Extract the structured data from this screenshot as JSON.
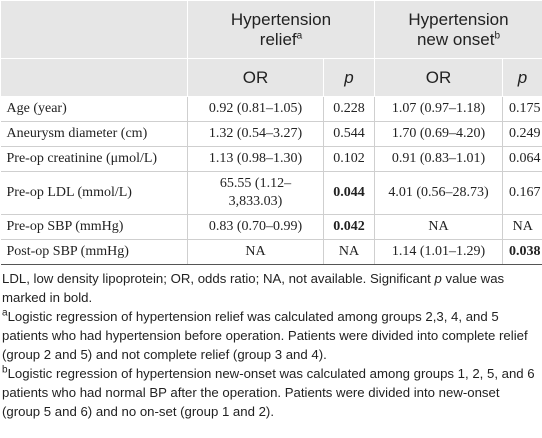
{
  "header": {
    "groups": [
      {
        "label": "Hypertension relief",
        "note": "a"
      },
      {
        "label": "Hypertension new onset",
        "note": "b"
      }
    ],
    "columns": [
      "OR",
      "p",
      "OR",
      "p"
    ]
  },
  "table": {
    "rows": [
      [
        "Age (year)",
        "0.92 (0.81–1.05)",
        "0.228",
        "1.07 (0.97–1.18)",
        "0.175"
      ],
      [
        "Aneurysm diameter (cm)",
        "1.32 (0.54–3.27)",
        "0.544",
        "1.70 (0.69–4.20)",
        "0.249"
      ],
      [
        "Pre-op creatinine (μmol/L)",
        "1.13 (0.98–1.30)",
        "0.102",
        "0.91 (0.83–1.01)",
        "0.064"
      ],
      [
        "Pre-op LDL (mmol/L)",
        "65.55 (1.12–3,833.03)",
        "0.044",
        "4.01 (0.56–28.73)",
        "0.167"
      ],
      [
        "Pre-op SBP (mmHg)",
        "0.83 (0.70–0.99)",
        "0.042",
        "NA",
        "NA"
      ],
      [
        "Post-op SBP (mmHg)",
        "NA",
        "NA",
        "1.14 (1.01–1.29)",
        "0.038"
      ]
    ]
  },
  "footnotes": {
    "abbreviations": {
      "before": "LDL, low density lipoprotein; OR, odds ratio; NA, not available. Significant ",
      "italic": "p",
      "after": " value was marked in bold."
    },
    "notes": [
      {
        "mark": "a",
        "text": "Logistic regression of hypertension relief was calculated among groups 2,3, 4, and 5 patients who had hypertension before operation. Patients were divided into complete relief (group 2 and 5) and not complete relief (group 3 and 4)."
      },
      {
        "mark": "b",
        "text": "Logistic regression of hypertension new-onset was calculated among groups 1, 2, 5, and 6 patients who had normal BP after the operation. Patients were divided into new-onset (group 5 and 6) and no on-set (group 1 and 2)."
      }
    ]
  }
}
